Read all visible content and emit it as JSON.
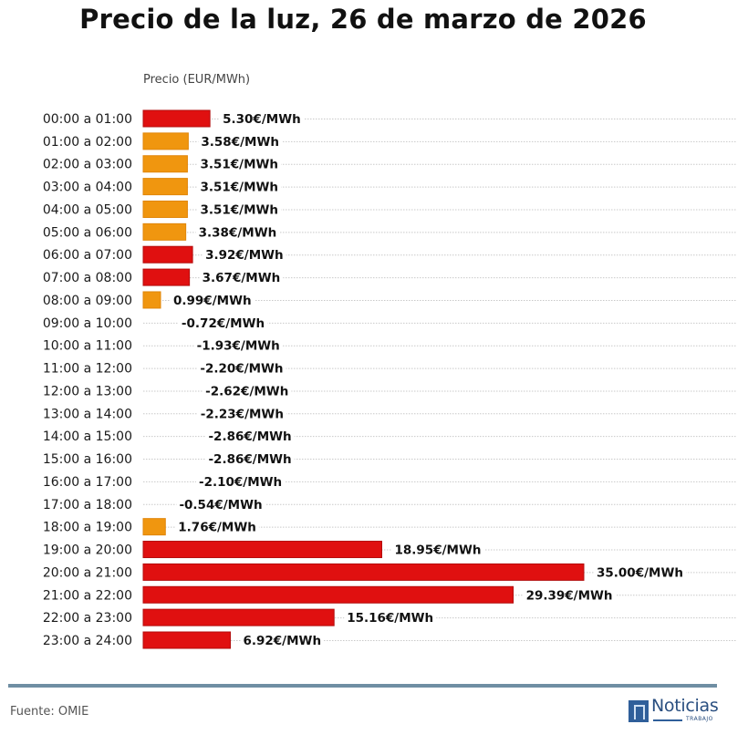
{
  "chart_data": {
    "type": "bar",
    "orientation": "horizontal",
    "title": "Precio de la luz, 26 de marzo de 2026",
    "xlabel": "Precio (EUR/MWh)",
    "ylabel": "",
    "value_suffix": "€/MWh",
    "grid": true,
    "xlim": [
      0,
      35
    ],
    "colors": {
      "high": "#e01010",
      "low": "#f0960f"
    },
    "categories": [
      "00:00 a 01:00",
      "01:00 a 02:00",
      "02:00 a 03:00",
      "03:00 a 04:00",
      "04:00 a 05:00",
      "05:00 a 06:00",
      "06:00 a 07:00",
      "07:00 a 08:00",
      "08:00 a 09:00",
      "09:00 a 10:00",
      "10:00 a 11:00",
      "11:00 a 12:00",
      "12:00 a 13:00",
      "13:00 a 14:00",
      "14:00 a 15:00",
      "15:00 a 16:00",
      "16:00 a 17:00",
      "17:00 a 18:00",
      "18:00 a 19:00",
      "19:00 a 20:00",
      "20:00 a 21:00",
      "21:00 a 22:00",
      "22:00 a 23:00",
      "23:00 a 24:00"
    ],
    "values": [
      5.3,
      3.58,
      3.51,
      3.51,
      3.51,
      3.38,
      3.92,
      3.67,
      0.99,
      -0.72,
      -1.93,
      -2.2,
      -2.62,
      -2.23,
      -2.86,
      -2.86,
      -2.1,
      -0.54,
      1.76,
      18.95,
      35.0,
      29.39,
      15.16,
      6.92
    ],
    "labels": [
      "5.30€/MWh",
      "3.58€/MWh",
      "3.51€/MWh",
      "3.51€/MWh",
      "3.51€/MWh",
      "3.38€/MWh",
      "3.92€/MWh",
      "3.67€/MWh",
      "0.99€/MWh",
      "-0.72€/MWh",
      "-1.93€/MWh",
      "-2.20€/MWh",
      "-2.62€/MWh",
      "-2.23€/MWh",
      "-2.86€/MWh",
      "-2.86€/MWh",
      "-2.10€/MWh",
      "-0.54€/MWh",
      "1.76€/MWh",
      "18.95€/MWh",
      "35.00€/MWh",
      "29.39€/MWh",
      "15.16€/MWh",
      "6.92€/MWh"
    ],
    "bar_color_class": [
      "high",
      "low",
      "low",
      "low",
      "low",
      "low",
      "high",
      "high",
      "low",
      "none",
      "none",
      "none",
      "none",
      "none",
      "none",
      "none",
      "none",
      "none",
      "low",
      "high",
      "high",
      "high",
      "high",
      "high"
    ]
  },
  "footer": {
    "source": "Fuente: OMIE",
    "logo_text": "Noticias",
    "logo_subtext": "TRABAJO"
  }
}
